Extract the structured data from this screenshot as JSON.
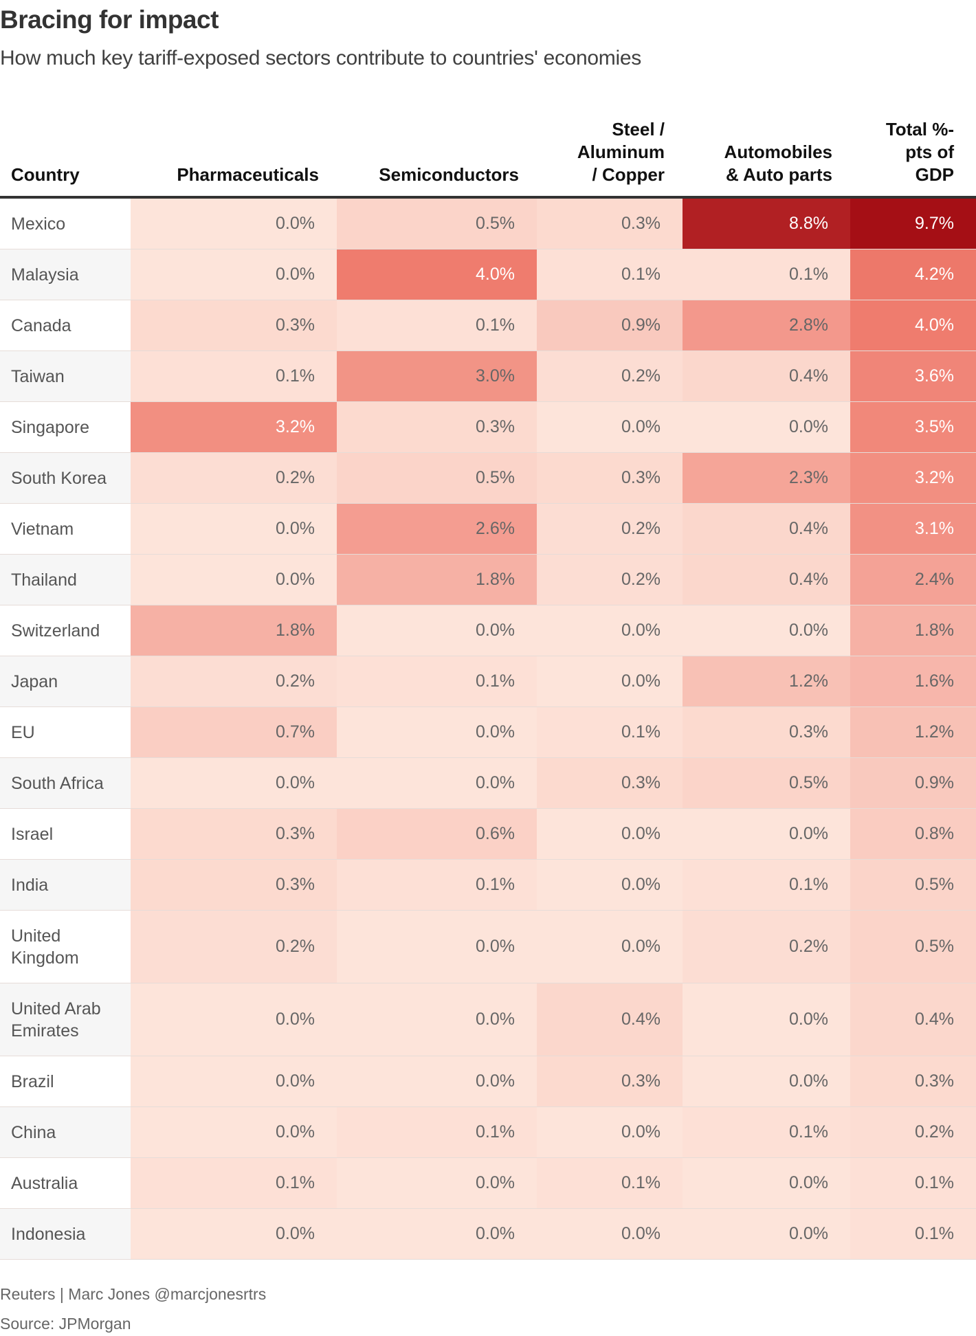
{
  "chart_data": {
    "type": "table",
    "title": "Bracing for impact",
    "subtitle": "How much key tariff-exposed sectors contribute to countries' economies",
    "columns": [
      "Country",
      "Pharmaceuticals",
      "Semiconductors",
      "Steel / Aluminum / Copper",
      "Automobiles & Auto parts",
      "Total %-pts of GDP"
    ],
    "column_header_lines": [
      [
        "Country"
      ],
      [
        "Pharmaceuticals"
      ],
      [
        "Semiconductors"
      ],
      [
        "Steel /",
        "Aluminum",
        "/ Copper"
      ],
      [
        "Automobiles",
        "& Auto parts"
      ],
      [
        "Total %-",
        "pts of",
        "GDP"
      ]
    ],
    "rows": [
      {
        "country": "Mexico",
        "values": [
          0.0,
          0.5,
          0.3,
          8.8,
          9.7
        ]
      },
      {
        "country": "Malaysia",
        "values": [
          0.0,
          4.0,
          0.1,
          0.1,
          4.2
        ]
      },
      {
        "country": "Canada",
        "values": [
          0.3,
          0.1,
          0.9,
          2.8,
          4.0
        ]
      },
      {
        "country": "Taiwan",
        "values": [
          0.1,
          3.0,
          0.2,
          0.4,
          3.6
        ]
      },
      {
        "country": "Singapore",
        "values": [
          3.2,
          0.3,
          0.0,
          0.0,
          3.5
        ]
      },
      {
        "country": "South Korea",
        "values": [
          0.2,
          0.5,
          0.3,
          2.3,
          3.2
        ]
      },
      {
        "country": "Vietnam",
        "values": [
          0.0,
          2.6,
          0.2,
          0.4,
          3.1
        ]
      },
      {
        "country": "Thailand",
        "values": [
          0.0,
          1.8,
          0.2,
          0.4,
          2.4
        ]
      },
      {
        "country": "Switzerland",
        "values": [
          1.8,
          0.0,
          0.0,
          0.0,
          1.8
        ]
      },
      {
        "country": "Japan",
        "values": [
          0.2,
          0.1,
          0.0,
          1.2,
          1.6
        ]
      },
      {
        "country": "EU",
        "values": [
          0.7,
          0.0,
          0.1,
          0.3,
          1.2
        ]
      },
      {
        "country": "South Africa",
        "values": [
          0.0,
          0.0,
          0.3,
          0.5,
          0.9
        ]
      },
      {
        "country": "Israel",
        "values": [
          0.3,
          0.6,
          0.0,
          0.0,
          0.8
        ]
      },
      {
        "country": "India",
        "values": [
          0.3,
          0.1,
          0.0,
          0.1,
          0.5
        ]
      },
      {
        "country": "United Kingdom",
        "values": [
          0.2,
          0.0,
          0.0,
          0.2,
          0.5
        ]
      },
      {
        "country": "United Arab Emirates",
        "values": [
          0.0,
          0.0,
          0.4,
          0.0,
          0.4
        ]
      },
      {
        "country": "Brazil",
        "values": [
          0.0,
          0.0,
          0.3,
          0.0,
          0.3
        ]
      },
      {
        "country": "China",
        "values": [
          0.0,
          0.1,
          0.0,
          0.1,
          0.2
        ]
      },
      {
        "country": "Australia",
        "values": [
          0.1,
          0.0,
          0.1,
          0.0,
          0.1
        ]
      },
      {
        "country": "Indonesia",
        "values": [
          0.0,
          0.0,
          0.0,
          0.0,
          0.1
        ]
      }
    ],
    "value_format": "percent, 1 decimal",
    "color_scale": {
      "low": "#fde4da",
      "mid": "#ef7a6c",
      "high": "#a50f15",
      "domain": [
        0,
        9.7
      ]
    }
  },
  "footer": {
    "credit": "Reuters | Marc Jones @marcjonesrtrs",
    "source": "Source: JPMorgan"
  }
}
